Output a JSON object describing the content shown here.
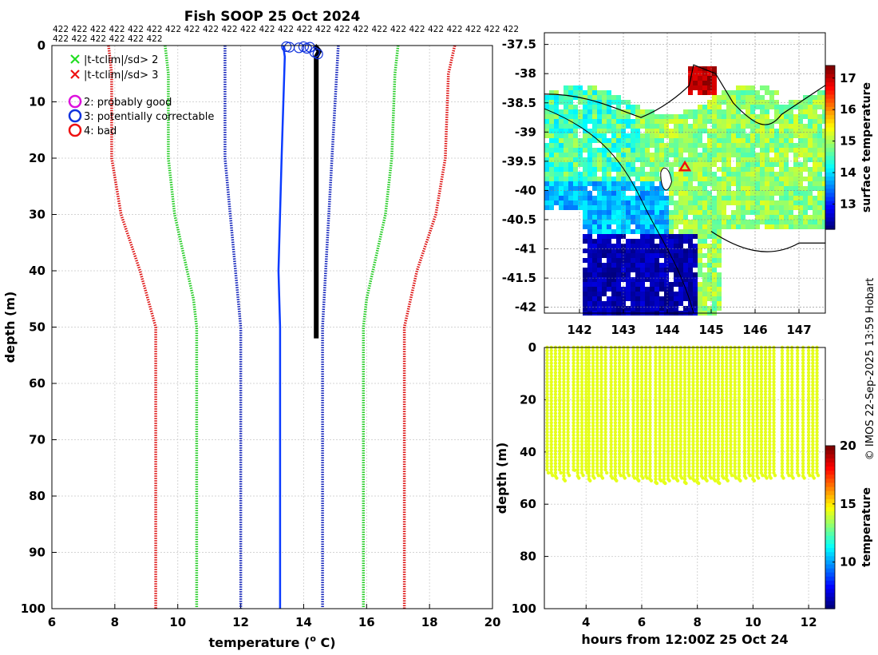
{
  "title": "Fish SOOP 25 Oct 2024",
  "profile_count_label": "422",
  "credit": "© IMOS 22-Sep-2025 13:59 Hobart",
  "chart_data": [
    {
      "id": "profile",
      "type": "line",
      "title": "Fish SOOP 25 Oct 2024",
      "xlabel": "temperature (",
      "xlabel_sup": "o",
      "xlabel_tail": " C)",
      "ylabel": "depth (m)",
      "xlim": [
        6,
        20
      ],
      "ylim": [
        0,
        100
      ],
      "xticks": [
        6,
        8,
        10,
        12,
        14,
        16,
        18,
        20
      ],
      "yticks": [
        0,
        10,
        20,
        30,
        40,
        50,
        60,
        70,
        80,
        90,
        100
      ],
      "legend": [
        {
          "label": "|t-tclim|/sd> 2",
          "marker": "x",
          "color": "#22dd22"
        },
        {
          "label": "|t-tclim|/sd> 3",
          "marker": "x",
          "color": "#ee1111"
        },
        {
          "label": "2: probably good",
          "marker": "o",
          "color": "#dd11dd"
        },
        {
          "label": "3: potentially correctable",
          "marker": "o",
          "color": "#1133dd"
        },
        {
          "label": "4: bad",
          "marker": "o",
          "color": "#ee1111"
        }
      ],
      "series": [
        {
          "name": "climatology -3sd",
          "color": "#dd1111",
          "depth": [
            0,
            5,
            20,
            30,
            40,
            45,
            50,
            100
          ],
          "temp": [
            7.8,
            7.9,
            7.9,
            8.2,
            8.8,
            9.05,
            9.3,
            9.3
          ]
        },
        {
          "name": "climatology +3sd",
          "color": "#dd1111",
          "depth": [
            0,
            5,
            20,
            30,
            40,
            45,
            50,
            100
          ],
          "temp": [
            18.8,
            18.6,
            18.5,
            18.2,
            17.6,
            17.4,
            17.2,
            17.2
          ]
        },
        {
          "name": "climatology -2sd",
          "color": "#22cc22",
          "depth": [
            0,
            5,
            20,
            30,
            40,
            45,
            50,
            100
          ],
          "temp": [
            9.6,
            9.7,
            9.7,
            9.9,
            10.3,
            10.5,
            10.6,
            10.6
          ]
        },
        {
          "name": "climatology +2sd",
          "color": "#22cc22",
          "depth": [
            0,
            5,
            20,
            30,
            40,
            45,
            50,
            100
          ],
          "temp": [
            17.0,
            16.9,
            16.8,
            16.6,
            16.2,
            16.0,
            15.9,
            15.9
          ]
        },
        {
          "name": "climatology -1sd",
          "color": "#1122bb",
          "depth": [
            0,
            20,
            50,
            100
          ],
          "temp": [
            11.5,
            11.5,
            12.0,
            12.0
          ]
        },
        {
          "name": "climatology +1sd",
          "color": "#1122bb",
          "depth": [
            0,
            20,
            50,
            100
          ],
          "temp": [
            15.1,
            14.9,
            14.6,
            14.6
          ]
        },
        {
          "name": "climatology mean",
          "color": "#0b3bff",
          "depth": [
            0,
            2,
            20,
            40,
            50,
            100
          ],
          "temp": [
            13.35,
            13.4,
            13.3,
            13.2,
            13.25,
            13.25
          ]
        },
        {
          "name": "observed profiles",
          "color": "#000000",
          "depth": [
            0,
            1,
            2,
            5,
            10,
            20,
            30,
            40,
            50,
            52
          ],
          "temp": [
            14.35,
            14.5,
            14.4,
            14.4,
            14.4,
            14.4,
            14.4,
            14.4,
            14.4,
            14.4
          ]
        }
      ],
      "flagged_points": {
        "label": "3: potentially correctable",
        "temp": [
          13.45,
          13.55,
          13.85,
          14.0,
          14.1,
          14.2,
          14.35,
          14.45
        ],
        "depth": [
          0.2,
          0.3,
          0.4,
          0.2,
          0.5,
          0.3,
          1.2,
          1.5
        ]
      }
    },
    {
      "id": "map",
      "type": "heatmap",
      "title": "",
      "xlim": [
        141.2,
        147.6
      ],
      "ylim": [
        -42.1,
        -37.3
      ],
      "xticks": [
        142,
        143,
        144,
        145,
        146,
        147
      ],
      "yticks": [
        -37.5,
        -38,
        -38.5,
        -39,
        -39.5,
        -40,
        -40.5,
        -41,
        -41.5,
        -42
      ],
      "colorbar_label": "surface temperature",
      "colorbar_range": [
        12.2,
        17.4
      ],
      "colorbar_ticks": [
        13,
        14,
        15,
        16,
        17
      ],
      "marker": {
        "lon": 144.4,
        "lat": -39.6,
        "symbol": "triangle",
        "color": "#ee1111"
      }
    },
    {
      "id": "timeseries",
      "type": "scatter",
      "xlabel": "hours from 12:00Z 25 Oct 24",
      "ylabel": "depth (m)",
      "xlim": [
        2.5,
        12.6
      ],
      "ylim": [
        0,
        100
      ],
      "xticks": [
        4,
        6,
        8,
        10,
        12
      ],
      "yticks": [
        0,
        20,
        40,
        60,
        80,
        100
      ],
      "colorbar_label": "temperature",
      "colorbar_range": [
        6,
        20
      ],
      "colorbar_ticks": [
        10,
        15,
        20
      ],
      "point_temperature": 14.4,
      "profile_hours": [
        2.6,
        2.75,
        2.9,
        3.05,
        3.2,
        3.35,
        3.55,
        3.7,
        3.85,
        4.0,
        4.1,
        4.25,
        4.4,
        4.55,
        4.7,
        4.9,
        5.05,
        5.2,
        5.35,
        5.5,
        5.7,
        5.85,
        6.0,
        6.15,
        6.3,
        6.5,
        6.65,
        6.8,
        6.95,
        7.1,
        7.25,
        7.4,
        7.55,
        7.7,
        7.85,
        8.0,
        8.15,
        8.3,
        8.45,
        8.6,
        8.75,
        8.9,
        9.05,
        9.2,
        9.35,
        9.5,
        9.7,
        9.85,
        10.0,
        10.15,
        10.3,
        10.45,
        10.6,
        10.75,
        11.05,
        11.25,
        11.4,
        11.6,
        11.8,
        12.0,
        12.15,
        12.3
      ],
      "max_depths": [
        48,
        49,
        50,
        48,
        51,
        49,
        47,
        50,
        49,
        48,
        51,
        50,
        49,
        50,
        48,
        50,
        51,
        49,
        50,
        49,
        50,
        51,
        50,
        50,
        51,
        52,
        51,
        52,
        51,
        50,
        51,
        50,
        52,
        50,
        51,
        52,
        50,
        51,
        50,
        51,
        52,
        50,
        51,
        49,
        50,
        51,
        50,
        49,
        51,
        50,
        49,
        50,
        50,
        49,
        50,
        49,
        50,
        49,
        50,
        49,
        50,
        49
      ]
    }
  ]
}
